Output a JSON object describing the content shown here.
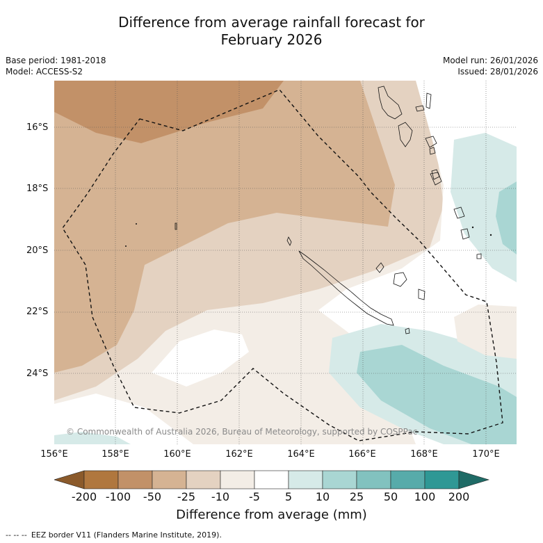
{
  "title_line1": "Difference from average rainfall forecast for",
  "title_line2": "February 2026",
  "base_period": "Base period: 1981-2018",
  "model": "Model: ACCESS-S2",
  "model_run": "Model run: 26/01/2026",
  "issued": "Issued: 28/01/2026",
  "map": {
    "lat_ticks": [
      "16°S",
      "18°S",
      "20°S",
      "22°S",
      "24°S"
    ],
    "lon_ticks": [
      "156°E",
      "158°E",
      "160°E",
      "162°E",
      "164°E",
      "166°E",
      "168°E",
      "170°E"
    ],
    "lon_range": [
      156,
      171
    ],
    "lat_range": [
      -14.8,
      -26.6
    ],
    "copyright": "© Commonwealth of Australia 2026, Bureau of Meteorology, supported by COSPPac"
  },
  "colorbar": {
    "labels": [
      "-200",
      "-100",
      "-50",
      "-25",
      "-10",
      "-5",
      "5",
      "10",
      "25",
      "50",
      "100",
      "200"
    ],
    "colors": [
      "#8b5a2b",
      "#b0773e",
      "#c29168",
      "#d5b393",
      "#e4d2c1",
      "#f3ede6",
      "#ffffff",
      "#d6eae8",
      "#a9d6d3",
      "#82c2bf",
      "#57abaa",
      "#2f9895",
      "#1f6b66"
    ],
    "title": "Difference from average (mm)"
  },
  "footer": {
    "dash": "-- -- --",
    "text": "EEZ border V11 (Flanders Marine Institute, 2019)."
  }
}
